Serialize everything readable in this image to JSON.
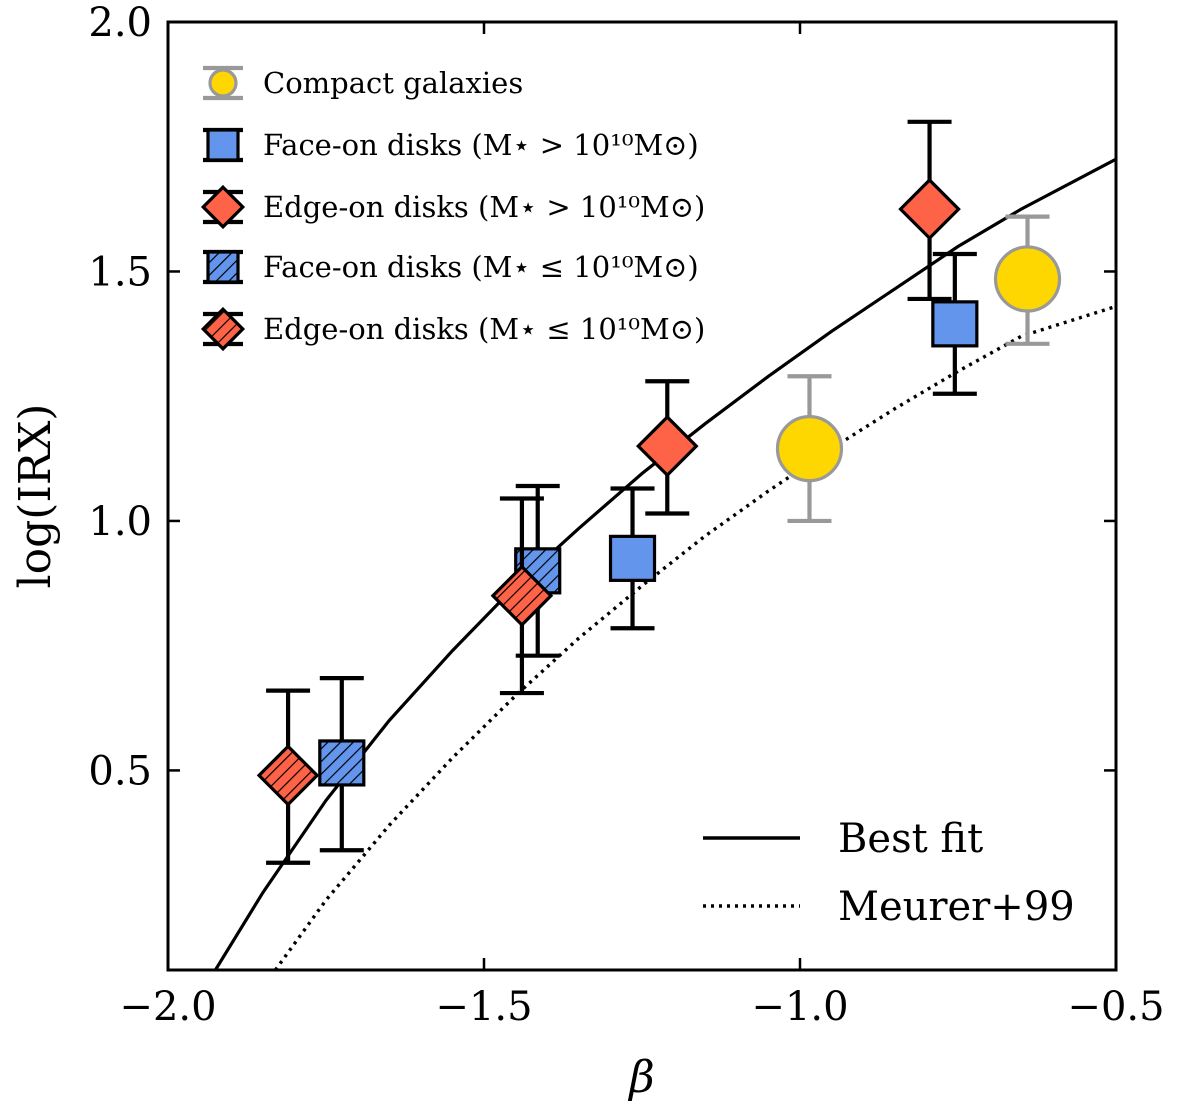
{
  "chart_data": {
    "type": "scatter",
    "title": "",
    "xlabel": "β",
    "ylabel": "log(IRX)",
    "xlim": [
      -2.0,
      -0.5
    ],
    "ylim": [
      0.1,
      2.0
    ],
    "xticks": [
      -2.0,
      -1.5,
      -1.0,
      -0.5
    ],
    "xtick_labels": [
      "−2.0",
      "−1.5",
      "−1.0",
      "−0.5"
    ],
    "yticks": [
      0.5,
      1.0,
      1.5,
      2.0
    ],
    "ytick_labels": [
      "0.5",
      "1.0",
      "1.5",
      "2.0"
    ],
    "grid": false,
    "marker_legend_placement": "top-left",
    "line_legend_placement": "bottom-right",
    "series": [
      {
        "name": "Compact galaxies",
        "marker": "circle",
        "fill": "#FFD700",
        "edge": "#999999",
        "hatch": false,
        "points": [
          {
            "x": -0.985,
            "y": 1.145,
            "ylo": 1.0,
            "yhi": 1.29
          },
          {
            "x": -0.64,
            "y": 1.485,
            "ylo": 1.355,
            "yhi": 1.61
          }
        ]
      },
      {
        "name": "Face-on disks (M⋆ > 10¹⁰M⊙)",
        "marker": "square",
        "fill": "#6495ED",
        "edge": "#000000",
        "hatch": false,
        "points": [
          {
            "x": -1.265,
            "y": 0.925,
            "ylo": 0.785,
            "yhi": 1.065
          },
          {
            "x": -0.755,
            "y": 1.395,
            "ylo": 1.255,
            "yhi": 1.535
          }
        ]
      },
      {
        "name": "Edge-on disks (M⋆ > 10¹⁰M⊙)",
        "marker": "diamond",
        "fill": "#FF6347",
        "edge": "#000000",
        "hatch": false,
        "points": [
          {
            "x": -1.21,
            "y": 1.15,
            "ylo": 1.015,
            "yhi": 1.28
          },
          {
            "x": -0.795,
            "y": 1.625,
            "ylo": 1.445,
            "yhi": 1.8
          }
        ]
      },
      {
        "name": "Face-on disks (M⋆ ≤ 10¹⁰M⊙)",
        "marker": "square",
        "fill": "#6495ED",
        "edge": "#000000",
        "hatch": true,
        "points": [
          {
            "x": -1.725,
            "y": 0.515,
            "ylo": 0.34,
            "yhi": 0.685
          },
          {
            "x": -1.415,
            "y": 0.9,
            "ylo": 0.73,
            "yhi": 1.07
          }
        ]
      },
      {
        "name": "Edge-on disks (M⋆ ≤ 10¹⁰M⊙)",
        "marker": "diamond",
        "fill": "#FF6347",
        "edge": "#000000",
        "hatch": true,
        "points": [
          {
            "x": -1.81,
            "y": 0.49,
            "ylo": 0.315,
            "yhi": 0.66
          },
          {
            "x": -1.44,
            "y": 0.85,
            "ylo": 0.655,
            "yhi": 1.045
          }
        ]
      }
    ],
    "lines": [
      {
        "name": "Best fit",
        "style": "solid",
        "color": "#000000",
        "x": [
          -1.925,
          -1.85,
          -1.75,
          -1.65,
          -1.55,
          -1.45,
          -1.35,
          -1.25,
          -1.15,
          -1.05,
          -0.95,
          -0.85,
          -0.75,
          -0.65,
          -0.5
        ],
        "y": [
          0.1,
          0.255,
          0.44,
          0.6,
          0.74,
          0.87,
          0.985,
          1.095,
          1.195,
          1.29,
          1.38,
          1.465,
          1.55,
          1.625,
          1.725
        ]
      },
      {
        "name": "Meurer+99",
        "style": "dotted",
        "color": "#000000",
        "x": [
          -1.83,
          -1.75,
          -1.65,
          -1.55,
          -1.45,
          -1.35,
          -1.25,
          -1.15,
          -1.05,
          -0.95,
          -0.85,
          -0.75,
          -0.65,
          -0.5
        ],
        "y": [
          0.1,
          0.24,
          0.39,
          0.525,
          0.65,
          0.765,
          0.87,
          0.97,
          1.06,
          1.145,
          1.225,
          1.3,
          1.37,
          1.43
        ]
      }
    ]
  }
}
